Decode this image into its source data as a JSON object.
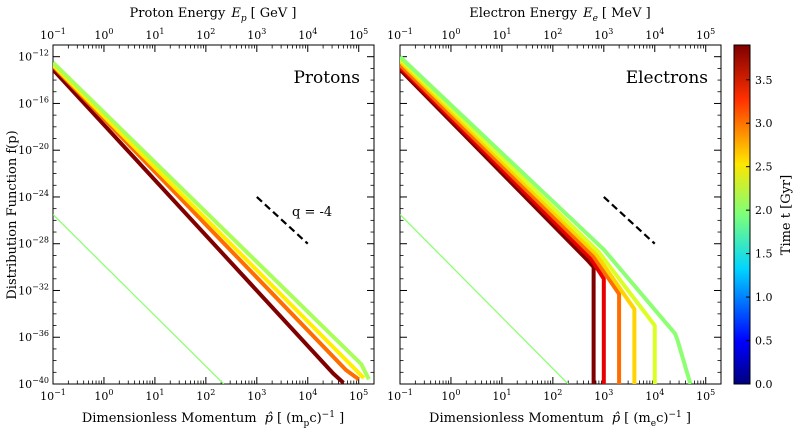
{
  "chart_data": {
    "type": "line",
    "shared": {
      "ylabel": "Distribution Function  f(p)",
      "ylim": [
        -40,
        -11
      ],
      "ytick_exponents": [
        -12,
        -16,
        -20,
        -24,
        -28,
        -32,
        -36,
        -40
      ],
      "xtick_exponents": [
        -1,
        0,
        1,
        2,
        3,
        4,
        5
      ],
      "xlim": [
        -1,
        5.3
      ],
      "yscale": "log",
      "xscale": "log",
      "colorbar": {
        "label": "Time  t [Gyr]",
        "min": 0.0,
        "max": 3.9,
        "ticks": [
          "0.0",
          "0.5",
          "1.0",
          "1.5",
          "2.0",
          "2.5",
          "3.0",
          "3.5"
        ],
        "colormap": "jet"
      }
    },
    "panels": [
      {
        "name": "protons",
        "panel_label": "Protons",
        "top_xlabel": "Proton Energy  E_p [ GeV ]",
        "top_xlabel_main": "Proton Energy",
        "top_xlabel_symbol": "E",
        "top_xlabel_sub": "p",
        "top_xlabel_unit": "[ GeV ]",
        "xlabel": "Dimensionless Momentum  p̂ [ (m_p c)^-1 ]",
        "xlabel_main": "Dimensionless Momentum",
        "xlabel_unit_open": "[ (m",
        "xlabel_unit_sub": "p",
        "xlabel_unit_close": "c)",
        "xlabel_unit_sup": "−1",
        "xlabel_unit_end": " ]",
        "slope_annotation": "q = -4",
        "slope_line": {
          "x": [
            3.0,
            4.0
          ],
          "y": [
            -24.0,
            -28.0
          ]
        },
        "initial_spectrum": {
          "time": 2.0,
          "x": [
            -1,
            2.35
          ],
          "y": [
            -25.5,
            -40
          ]
        },
        "series": [
          {
            "time": 3.9,
            "x": [
              -1,
              4.5,
              4.7
            ],
            "y": [
              -13.1,
              -39.1,
              -39.9
            ]
          },
          {
            "time": 3.0,
            "x": [
              -1,
              4.75,
              5.0
            ],
            "y": [
              -12.8,
              -38.8,
              -39.6
            ]
          },
          {
            "time": 2.5,
            "x": [
              -1,
              4.9,
              5.1
            ],
            "y": [
              -12.7,
              -38.6,
              -39.5
            ]
          },
          {
            "time": 2.1,
            "x": [
              -1,
              5.05,
              5.2
            ],
            "y": [
              -12.5,
              -38.3,
              -39.6
            ]
          }
        ]
      },
      {
        "name": "electrons",
        "panel_label": "Electrons",
        "top_xlabel": "Electron Energy  E_e [ MeV ]",
        "top_xlabel_main": "Electron Energy",
        "top_xlabel_symbol": "E",
        "top_xlabel_sub": "e",
        "top_xlabel_unit": "[ MeV ]",
        "xlabel": "Dimensionless Momentum  p̂ [ (m_e c)^-1 ]",
        "xlabel_main": "Dimensionless Momentum",
        "xlabel_unit_open": "[ (m",
        "xlabel_unit_sub": "e",
        "xlabel_unit_close": "c)",
        "xlabel_unit_sup": "−1",
        "xlabel_unit_end": " ]",
        "slope_annotation": "",
        "slope_line": {
          "x": [
            3.0,
            4.0
          ],
          "y": [
            -24.0,
            -28.0
          ]
        },
        "initial_spectrum": {
          "time": 2.0,
          "x": [
            -1,
            2.3
          ],
          "y": [
            -25.5,
            -40
          ]
        },
        "series": [
          {
            "time": 3.9,
            "x": [
              -1,
              2.7,
              2.8,
              2.8
            ],
            "y": [
              -13.1,
              -29.5,
              -30.0,
              -40
            ]
          },
          {
            "time": 3.5,
            "x": [
              -1,
              2.75,
              3.0,
              3.0
            ],
            "y": [
              -12.9,
              -29.3,
              -31.0,
              -40
            ]
          },
          {
            "time": 3.0,
            "x": [
              -1,
              2.8,
              3.3,
              3.3
            ],
            "y": [
              -12.7,
              -29.1,
              -32.3,
              -40
            ]
          },
          {
            "time": 2.6,
            "x": [
              -1,
              2.85,
              3.6,
              3.6
            ],
            "y": [
              -12.4,
              -28.9,
              -33.6,
              -40
            ]
          },
          {
            "time": 2.3,
            "x": [
              -1,
              2.9,
              4.0,
              4.0
            ],
            "y": [
              -12.2,
              -28.7,
              -35.0,
              -40
            ]
          },
          {
            "time": 2.0,
            "x": [
              -1,
              3.0,
              4.4,
              4.45,
              4.7
            ],
            "y": [
              -12.0,
              -28.5,
              -35.7,
              -36.3,
              -40
            ]
          }
        ]
      }
    ]
  }
}
